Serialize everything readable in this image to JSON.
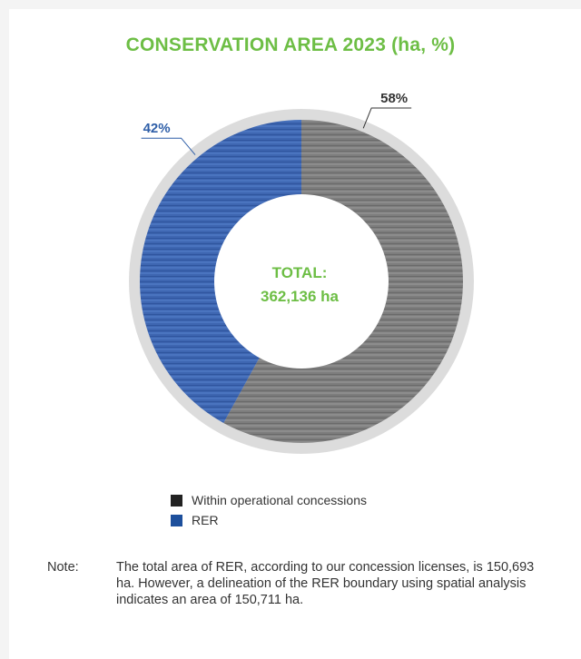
{
  "chart_data": {
    "type": "pie",
    "title": "CONSERVATION AREA 2023 (ha, %)",
    "center_label": [
      "TOTAL:",
      "362,136 ha"
    ],
    "slices": [
      {
        "label": "Within operational concessions",
        "value": 58,
        "display": "58%",
        "color": "#7a7a7a",
        "legend_color": "#222222"
      },
      {
        "label": "RER",
        "value": 42,
        "display": "42%",
        "color": "#3f68b3",
        "legend_color": "#1d4f9c"
      }
    ],
    "legend_placement": "bottom"
  },
  "note": {
    "label": "Note:",
    "text": "The total area of RER, according to our concession licenses, is 150,693 ha. However, a delineation of the RER boundary using spatial analysis indicates an area of 150,711 ha."
  }
}
